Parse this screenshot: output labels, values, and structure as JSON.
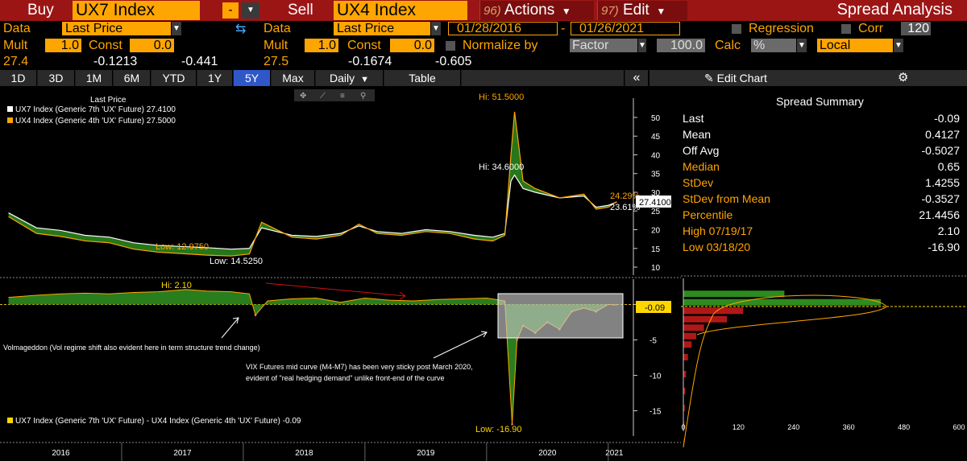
{
  "top": {
    "buy_label": "Buy",
    "buy_ticker": "UX7 Index",
    "minus_btn": "-",
    "sell_label": "Sell",
    "sell_ticker": "UX4 Index",
    "actions_num": "96)",
    "actions_label": "Actions",
    "edit_num": "97)",
    "edit_label": "Edit",
    "title": "Spread Analysis"
  },
  "settings": {
    "data_label": "Data",
    "data_value_left": "Last Price",
    "data_value_right": "Last Price",
    "date_from": "01/28/2016",
    "date_sep": "-",
    "date_to": "01/26/2021",
    "regression_label": "Regression",
    "corr_label": "Corr",
    "corr_value": "120",
    "mult_label": "Mult",
    "mult_left": "1.0",
    "mult_right": "1.0",
    "const_label": "Const",
    "const_left": "0.0",
    "const_right": "0.0",
    "normalize_label": "Normalize by",
    "normalize_value": "Factor",
    "factor_value": "100.0",
    "calc_label": "Calc",
    "calc_value": "%",
    "local_value": "Local",
    "left_last": "27.4",
    "left_chg": "-0.1213",
    "left_pct": "-0.441",
    "right_last": "27.5",
    "right_chg": "-0.1674",
    "right_pct": "-0.605"
  },
  "tabs": [
    "1D",
    "3D",
    "1M",
    "6M",
    "YTD",
    "1Y",
    "5Y",
    "Max"
  ],
  "active_tab": "5Y",
  "daily_label": "Daily",
  "table_label": "Table",
  "edit_chart_label": "Edit Chart",
  "legend": {
    "header": "Last Price",
    "series1": "UX7 Index (Generic 7th 'UX' Future) 27.4100",
    "series2": "UX4 Index (Generic 4th 'UX' Future) 27.5000",
    "spread": "UX7 Index (Generic 7th 'UX' Future) - UX4 Index (Generic 4th 'UX' Future) -0.09"
  },
  "annotations": {
    "hi_top": "Hi: 51.5000",
    "hi_mid": "Hi: 34.6000",
    "low_orange": "Low: 12.9750",
    "low_white": "Low: 14.5250",
    "last_orange": "24.29%",
    "last_white": "23.61%",
    "last_badge": "27.4100",
    "hi_spread": "Hi: 2.10",
    "low_spread": "Low: -16.90",
    "spread_badge": "-0.09",
    "volmageddon": "Volmageddon (Vol regime shift also evident here in term structure trend change)",
    "note1": "VIX Futures mid curve (M4-M7) has been very sticky post March 2020,",
    "note2": "evident of \"real hedging demand\" unlike front-end of the curve"
  },
  "summary": {
    "title": "Spread Summary",
    "rows": [
      {
        "k": "Last",
        "v": "-0.09",
        "color": "#ffffff"
      },
      {
        "k": "Mean",
        "v": "0.4127",
        "color": "#ffffff"
      },
      {
        "k": "Off Avg",
        "v": "-0.5027",
        "color": "#ffffff"
      },
      {
        "k": "Median",
        "v": "0.65",
        "color": "#ffa500"
      },
      {
        "k": "StDev",
        "v": "1.4255",
        "color": "#ffa500"
      },
      {
        "k": "StDev from Mean",
        "v": "-0.3527",
        "color": "#ffa500"
      },
      {
        "k": "Percentile",
        "v": "21.4456",
        "color": "#ffa500"
      },
      {
        "k": "High 07/19/17",
        "v": "2.10",
        "color": "#ffa500"
      },
      {
        "k": "Low 03/18/20",
        "v": "-16.90",
        "color": "#ffa500"
      }
    ]
  },
  "chart_data": [
    {
      "type": "line",
      "x_ticks": [
        "2016",
        "2017",
        "2018",
        "2019",
        "2020",
        "2021"
      ],
      "y_ticks": [
        10,
        15,
        20,
        25,
        30,
        35,
        40,
        45,
        50
      ],
      "ylim": [
        8.5,
        53
      ],
      "series": [
        {
          "name": "UX7 Index (Generic 7th 'UX' Future)",
          "color": "#ffffff",
          "x": [
            2016.07,
            2016.3,
            2016.5,
            2016.7,
            2016.9,
            2017.1,
            2017.3,
            2017.5,
            2017.7,
            2017.9,
            2018.05,
            2018.15,
            2018.4,
            2018.6,
            2018.8,
            2018.95,
            2019.1,
            2019.3,
            2019.5,
            2019.7,
            2019.9,
            2020.05,
            2020.15,
            2020.2,
            2020.23,
            2020.3,
            2020.4,
            2020.6,
            2020.8,
            2020.9,
            2021.0,
            2021.07
          ],
          "y": [
            24.5,
            20.5,
            19.8,
            18.5,
            18.0,
            16.5,
            15.8,
            15.5,
            15.2,
            14.8,
            15.0,
            20.5,
            18.5,
            18.2,
            19.0,
            21.0,
            19.5,
            19.0,
            20.0,
            19.5,
            18.5,
            18.0,
            19.0,
            33.0,
            34.6,
            31.0,
            30.0,
            28.5,
            29.0,
            26.0,
            26.5,
            27.41
          ]
        },
        {
          "name": "UX4 Index (Generic 4th 'UX' Future)",
          "color": "#ffa500",
          "x": [
            2016.07,
            2016.3,
            2016.5,
            2016.7,
            2016.9,
            2017.1,
            2017.3,
            2017.5,
            2017.7,
            2017.9,
            2018.05,
            2018.15,
            2018.4,
            2018.6,
            2018.8,
            2018.95,
            2019.1,
            2019.3,
            2019.5,
            2019.7,
            2019.9,
            2020.05,
            2020.15,
            2020.2,
            2020.23,
            2020.3,
            2020.4,
            2020.6,
            2020.8,
            2020.9,
            2021.0,
            2021.07
          ],
          "y": [
            23.5,
            19.0,
            18.2,
            17.0,
            16.5,
            14.8,
            14.0,
            13.6,
            13.2,
            12.975,
            13.5,
            22.0,
            18.0,
            17.5,
            18.5,
            21.5,
            19.0,
            18.5,
            19.5,
            19.0,
            17.5,
            17.0,
            18.5,
            40.0,
            51.5,
            33.0,
            31.0,
            28.5,
            29.5,
            25.5,
            26.0,
            27.5
          ]
        }
      ]
    },
    {
      "type": "area",
      "y_ticks": [
        -15,
        -10,
        -5,
        0
      ],
      "ylim": [
        -18,
        3
      ],
      "series": [
        {
          "name": "UX7 Index (Generic 7th 'UX' Future) - UX4 Index (Generic 4th 'UX' Future)",
          "color": "#2e8b1f",
          "x": [
            2016.07,
            2016.3,
            2016.5,
            2016.7,
            2016.9,
            2017.1,
            2017.3,
            2017.53,
            2017.7,
            2017.9,
            2018.05,
            2018.1,
            2018.2,
            2018.4,
            2018.6,
            2018.8,
            2019.0,
            2019.2,
            2019.4,
            2019.6,
            2019.8,
            2020.0,
            2020.15,
            2020.21,
            2020.25,
            2020.3,
            2020.4,
            2020.5,
            2020.6,
            2020.7,
            2020.8,
            2020.9,
            2021.0,
            2021.07
          ],
          "y": [
            1.0,
            1.3,
            1.5,
            1.6,
            1.5,
            1.7,
            1.8,
            2.1,
            1.9,
            1.8,
            1.5,
            -1.5,
            0.5,
            0.8,
            0.9,
            0.3,
            0.9,
            0.6,
            0.5,
            0.7,
            0.8,
            0.9,
            0.5,
            -16.9,
            -5.0,
            -3.0,
            -4.0,
            -2.5,
            -3.5,
            -1.0,
            -0.5,
            -1.0,
            0.0,
            -0.09
          ]
        }
      ]
    },
    {
      "type": "bar",
      "x_ticks": [
        0,
        120,
        240,
        360,
        480,
        600
      ],
      "xlim": [
        0,
        600
      ],
      "bins": [
        1.5,
        0.5,
        -0.5,
        -1.5,
        -2.5,
        -3.5,
        -4.5,
        -6,
        -8,
        -10,
        -12,
        -14,
        -16
      ],
      "values": [
        220,
        430,
        130,
        95,
        45,
        28,
        18,
        10,
        6,
        4,
        3,
        2,
        1
      ]
    }
  ]
}
